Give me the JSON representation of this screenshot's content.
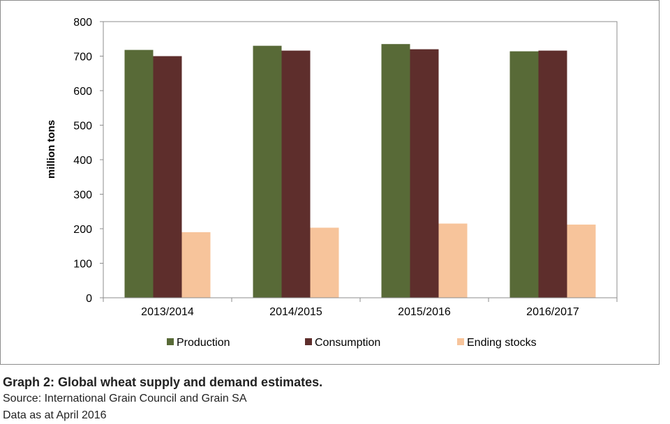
{
  "chart_data": {
    "type": "bar",
    "title": "",
    "xlabel": "",
    "ylabel": "million tons",
    "ylim": [
      0,
      800
    ],
    "yticks": [
      0,
      100,
      200,
      300,
      400,
      500,
      600,
      700,
      800
    ],
    "grid": false,
    "legend_position": "bottom",
    "categories": [
      "2013/2014",
      "2014/2015",
      "2015/2016",
      "2016/2017"
    ],
    "series": [
      {
        "name": "Production",
        "color": "#586a37",
        "values": [
          718,
          730,
          735,
          714
        ]
      },
      {
        "name": "Consumption",
        "color": "#5e2e2c",
        "values": [
          700,
          716,
          720,
          716
        ]
      },
      {
        "name": "Ending stocks",
        "color": "#f7c49b",
        "values": [
          190,
          203,
          215,
          212
        ]
      }
    ]
  },
  "caption": {
    "title": "Graph 2: Global wheat supply and demand estimates.",
    "source": "Source: International Grain Council and Grain SA",
    "date": "Data as at April 2016"
  }
}
